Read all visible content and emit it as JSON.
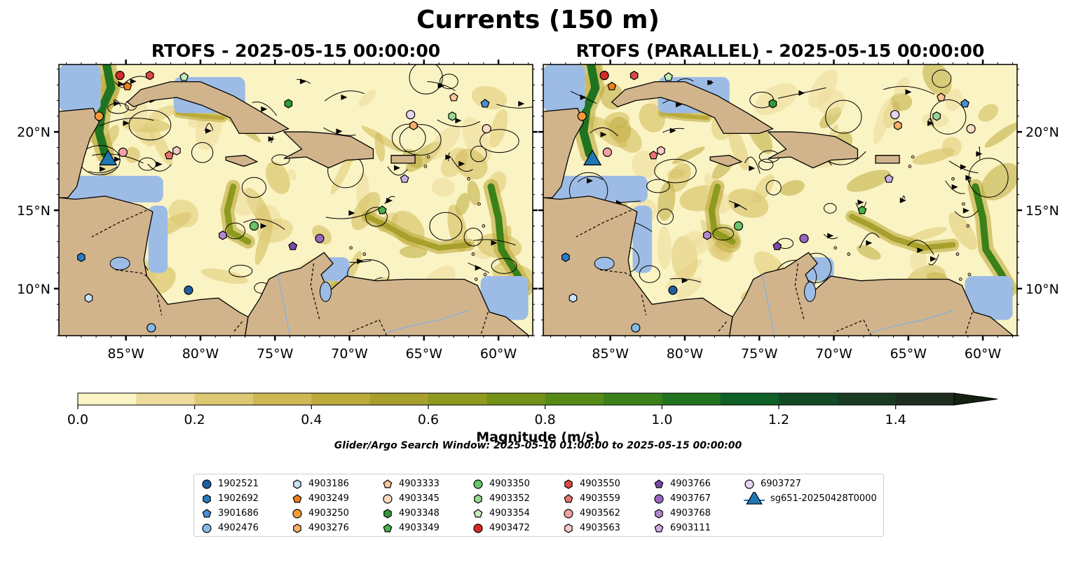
{
  "title": "Currents (150 m)",
  "panels": [
    {
      "title": "RTOFS - 2025-05-15 00:00:00"
    },
    {
      "title": "RTOFS (PARALLEL) - 2025-05-15 00:00:00"
    }
  ],
  "map": {
    "lon_range": [
      -89.5,
      -57.7
    ],
    "lat_range": [
      7.0,
      24.3
    ],
    "lon_ticks": [
      {
        "value": -85,
        "label": "85°W"
      },
      {
        "value": -80,
        "label": "80°W"
      },
      {
        "value": -75,
        "label": "75°W"
      },
      {
        "value": -70,
        "label": "70°W"
      },
      {
        "value": -65,
        "label": "65°W"
      },
      {
        "value": -60,
        "label": "60°W"
      }
    ],
    "lat_ticks": [
      {
        "value": 20,
        "label": "20°N"
      },
      {
        "value": 15,
        "label": "15°N"
      },
      {
        "value": 10,
        "label": "10°N"
      }
    ],
    "colors": {
      "land": "#d2b48c",
      "ocean": "#9dbce5",
      "coastline": "#000000"
    }
  },
  "colorbar": {
    "label": "Magnitude (m/s)",
    "min": 0.0,
    "max": 1.5,
    "extend": "max",
    "ticks": [
      {
        "value": 0.0,
        "label": "0.0"
      },
      {
        "value": 0.2,
        "label": "0.2"
      },
      {
        "value": 0.4,
        "label": "0.4"
      },
      {
        "value": 0.6,
        "label": "0.6"
      },
      {
        "value": 0.8,
        "label": "0.8"
      },
      {
        "value": 1.0,
        "label": "1.0"
      },
      {
        "value": 1.2,
        "label": "1.2"
      },
      {
        "value": 1.4,
        "label": "1.4"
      }
    ],
    "colors": [
      "#faf3c3",
      "#ecdb9a",
      "#dfc874",
      "#cfb853",
      "#bcaa3c",
      "#a7a02c",
      "#8e9a1e",
      "#729116",
      "#568a17",
      "#3b8019",
      "#21741f",
      "#0f6026",
      "#124a26",
      "#1a3b23",
      "#1d2c1e"
    ]
  },
  "search_window": "Glider/Argo Search Window: 2025-05-10 01:00:00 to 2025-05-15 00:00:00",
  "chart_data": {
    "type": "map",
    "variable": "current magnitude at 150 m",
    "units": "m/s",
    "observations": [
      {
        "id": "1902521",
        "marker": "circle",
        "color": "#1f5fa0",
        "lon": -80.8,
        "lat": 9.9,
        "lon2": -80.8,
        "lat2": 9.9
      },
      {
        "id": "1902692",
        "marker": "hexagon",
        "color": "#2a7bc4",
        "lon": -88.0,
        "lat": 12.0,
        "lon2": -88.0,
        "lat2": 12.0
      },
      {
        "id": "3901686",
        "marker": "pentagon",
        "color": "#4a90d4",
        "lon": -60.9,
        "lat": 21.8,
        "lon2": -61.2,
        "lat2": 21.8
      },
      {
        "id": "4902476",
        "marker": "circle",
        "color": "#86b9e6",
        "lon": -83.3,
        "lat": 7.5,
        "lon2": -83.3,
        "lat2": 7.5
      },
      {
        "id": "4903186",
        "marker": "hexagon",
        "color": "#c6e3f7",
        "lon": -87.5,
        "lat": 9.4,
        "lon2": -87.5,
        "lat2": 9.4
      },
      {
        "id": "4903249",
        "marker": "pentagon",
        "color": "#f07f18",
        "lon": -84.9,
        "lat": 22.9,
        "lon2": -84.9,
        "lat2": 22.9
      },
      {
        "id": "4903250",
        "marker": "circle",
        "color": "#f59a3d",
        "lon": -86.8,
        "lat": 21.0,
        "lon2": -86.9,
        "lat2": 21.0
      },
      {
        "id": "4903276",
        "marker": "hexagon",
        "color": "#f8ae68",
        "lon": -65.7,
        "lat": 20.4,
        "lon2": -65.7,
        "lat2": 20.4
      },
      {
        "id": "4903333",
        "marker": "pentagon",
        "color": "#fbc597",
        "lon": -63.0,
        "lat": 22.2,
        "lon2": -62.8,
        "lat2": 22.2
      },
      {
        "id": "4903345",
        "marker": "circle",
        "color": "#fddcbf",
        "lon": -60.8,
        "lat": 20.2,
        "lon2": -60.8,
        "lat2": 20.2
      },
      {
        "id": "4903348",
        "marker": "hexagon",
        "color": "#2f9a3a",
        "lon": -74.1,
        "lat": 21.8,
        "lon2": -74.1,
        "lat2": 21.8
      },
      {
        "id": "4903349",
        "marker": "pentagon",
        "color": "#46b04d",
        "lon": -67.8,
        "lat": 15.0,
        "lon2": -68.1,
        "lat2": 15.0
      },
      {
        "id": "4903350",
        "marker": "circle",
        "color": "#6ac46a",
        "lon": -76.4,
        "lat": 14.0,
        "lon2": -76.4,
        "lat2": 14.0
      },
      {
        "id": "4903352",
        "marker": "hexagon",
        "color": "#97d890",
        "lon": -63.1,
        "lat": 21.0,
        "lon2": -63.1,
        "lat2": 21.0
      },
      {
        "id": "4903354",
        "marker": "pentagon",
        "color": "#c4ecba",
        "lon": -81.1,
        "lat": 23.5,
        "lon2": -81.1,
        "lat2": 23.5
      },
      {
        "id": "4903472",
        "marker": "circle",
        "color": "#d62a28",
        "lon": -85.4,
        "lat": 23.6,
        "lon2": -85.4,
        "lat2": 23.6
      },
      {
        "id": "4903550",
        "marker": "hexagon",
        "color": "#e04848",
        "lon": -83.4,
        "lat": 23.6,
        "lon2": -83.4,
        "lat2": 23.6
      },
      {
        "id": "4903559",
        "marker": "pentagon",
        "color": "#ea7272",
        "lon": -82.1,
        "lat": 18.5,
        "lon2": -82.1,
        "lat2": 18.5
      },
      {
        "id": "4903562",
        "marker": "circle",
        "color": "#f2a2a2",
        "lon": -85.2,
        "lat": 18.7,
        "lon2": -85.2,
        "lat2": 18.7
      },
      {
        "id": "4903563",
        "marker": "hexagon",
        "color": "#f8c8c8",
        "lon": -81.6,
        "lat": 18.8,
        "lon2": -81.6,
        "lat2": 18.8
      },
      {
        "id": "4903766",
        "marker": "pentagon",
        "color": "#7a4aa8",
        "lon": -73.8,
        "lat": 12.7,
        "lon2": -73.8,
        "lat2": 12.7
      },
      {
        "id": "4903767",
        "marker": "circle",
        "color": "#9a66c2",
        "lon": -72.0,
        "lat": 13.2,
        "lon2": -72.0,
        "lat2": 13.2
      },
      {
        "id": "4903768",
        "marker": "hexagon",
        "color": "#b488d2",
        "lon": -78.5,
        "lat": 13.4,
        "lon2": -78.5,
        "lat2": 13.4
      },
      {
        "id": "6903111",
        "marker": "pentagon",
        "color": "#cbafe3",
        "lon": -66.3,
        "lat": 17.0,
        "lon2": -66.3,
        "lat2": 17.0
      },
      {
        "id": "6903727",
        "marker": "circle",
        "color": "#e3d4f2",
        "lon": -65.9,
        "lat": 21.1,
        "lon2": -65.9,
        "lat2": 21.1
      },
      {
        "id": "sg651-20250428T0000",
        "marker": "triangle",
        "color": "#1f77b4",
        "lon": -86.2,
        "lat": 18.3,
        "lon2": -86.2,
        "lat2": 18.3
      }
    ]
  }
}
